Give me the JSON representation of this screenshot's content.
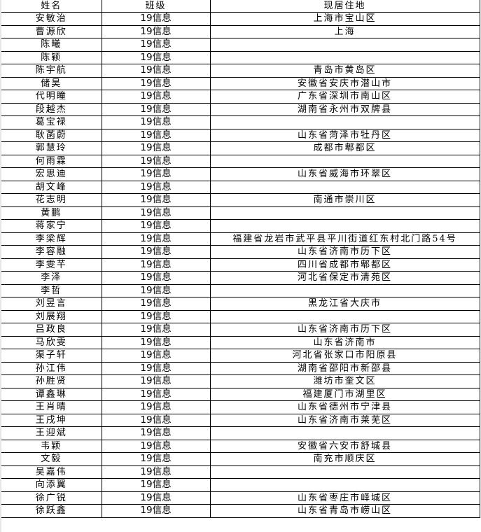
{
  "headers": {
    "name": "姓名",
    "class": "班级",
    "address": "现居住地"
  },
  "rows": [
    {
      "name": "安敏治",
      "class": "19信息",
      "address": "上海市宝山区"
    },
    {
      "name": "曹源欣",
      "class": "19信息",
      "address": "上海"
    },
    {
      "name": "陈曦",
      "class": "19信息",
      "address": ""
    },
    {
      "name": "陈颖",
      "class": "19信息",
      "address": ""
    },
    {
      "name": "陈宇航",
      "class": "19信息",
      "address": "青岛市黄岛区"
    },
    {
      "name": "储昊",
      "class": "19信息",
      "address": "安徽省安庆市潜山市"
    },
    {
      "name": "代明瞳",
      "class": "19信息",
      "address": "广东省深圳市南山区"
    },
    {
      "name": "段越杰",
      "class": "19信息",
      "address": "湖南省永州市双牌县"
    },
    {
      "name": "葛宝禄",
      "class": "19信息",
      "address": ""
    },
    {
      "name": "耿菡蔚",
      "class": "19信息",
      "address": "山东省菏泽市牡丹区"
    },
    {
      "name": "郭慧玲",
      "class": "19信息",
      "address": "成都市郫都区"
    },
    {
      "name": "何雨霖",
      "class": "19信息",
      "address": ""
    },
    {
      "name": "宏思迪",
      "class": "19信息",
      "address": "山东省威海市环翠区"
    },
    {
      "name": "胡文峰",
      "class": "19信息",
      "address": ""
    },
    {
      "name": "花志明",
      "class": "19信息",
      "address": "南通市崇川区"
    },
    {
      "name": "黄鹏",
      "class": "19信息",
      "address": ""
    },
    {
      "name": "蒋家宁",
      "class": "19信息",
      "address": ""
    },
    {
      "name": "李梁辉",
      "class": "19信息",
      "address": "福建省龙岩市武平县平川街道红东村北门路54号"
    },
    {
      "name": "李容融",
      "class": "19信息",
      "address": "山东省济南市历下区"
    },
    {
      "name": "李雯芊",
      "class": "19信息",
      "address": "四川省成都市郫都区"
    },
    {
      "name": "李泽",
      "class": "19信息",
      "address": "河北省保定市清苑区"
    },
    {
      "name": "李哲",
      "class": "19信息",
      "address": ""
    },
    {
      "name": "刘昱言",
      "class": "19信息",
      "address": "黑龙江省大庆市"
    },
    {
      "name": "刘展翔",
      "class": "19信息",
      "address": ""
    },
    {
      "name": "吕政良",
      "class": "19信息",
      "address": "山东省济南市历下区"
    },
    {
      "name": "马欣雯",
      "class": "19信息",
      "address": "山东省济南市"
    },
    {
      "name": "渠子轩",
      "class": "19信息",
      "address": "河北省张家口市阳原县"
    },
    {
      "name": "孙江伟",
      "class": "19信息",
      "address": "湖南省邵阳市新邵县"
    },
    {
      "name": "孙胜贤",
      "class": "19信息",
      "address": "潍坊市奎文区"
    },
    {
      "name": "谭鑫琳",
      "class": "19信息",
      "address": "福建厦门市湖里区"
    },
    {
      "name": "王肖晴",
      "class": "19信息",
      "address": "山东省德州市宁津县"
    },
    {
      "name": "王戌坤",
      "class": "19信息",
      "address": "山东省济南市莱芜区"
    },
    {
      "name": "王迎斌",
      "class": "19信息",
      "address": ""
    },
    {
      "name": "韦颖",
      "class": "19信息",
      "address": "安徽省六安市舒城县"
    },
    {
      "name": "文毅",
      "class": "19信息",
      "address": "南充市顺庆区"
    },
    {
      "name": "吴嘉伟",
      "class": "19信息",
      "address": ""
    },
    {
      "name": "向添翼",
      "class": "19信息",
      "address": ""
    },
    {
      "name": "徐广锐",
      "class": "19信息",
      "address": "山东省枣庄市峄城区"
    },
    {
      "name": "徐跃鑫",
      "class": "19信息",
      "address": "山东省青岛市崂山区"
    }
  ]
}
